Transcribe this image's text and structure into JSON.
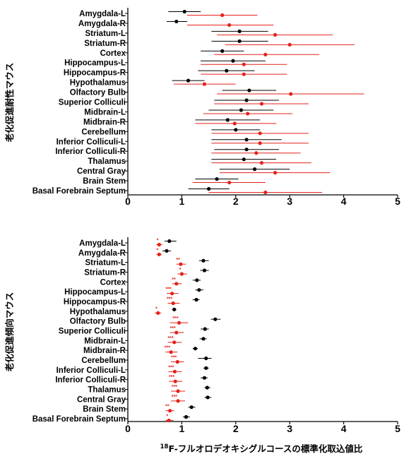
{
  "figure": {
    "x_axis_label_sup": "18",
    "x_axis_label": "F-フルオロデオキシグルコースの標準化取込値比"
  },
  "colors": {
    "control": "#000000",
    "treatment": "#e4221b"
  },
  "chart_data": [
    {
      "type": "scatter",
      "panel": "top",
      "ylabel": "老化促進耐性マウス",
      "xlim": [
        0,
        5
      ],
      "xticks": [
        0,
        1,
        2,
        3,
        4,
        5
      ],
      "categories": [
        "Amygdala-L",
        "Amygdala-R",
        "Striatum-L",
        "Striatum-R",
        "Cortex",
        "Hippocampus-L",
        "Hippocampus-R",
        "Hypothalamus",
        "Olfactory Bulb",
        "Superior Colliculi",
        "Midbrain-L",
        "Midbrain-R",
        "Cerebellum",
        "Inferior Colliculi-L",
        "Inferior Colliculi-R",
        "Thalamus",
        "Central Gray",
        "Brain Stem",
        "Basal Forebrain Septum"
      ],
      "series": [
        {
          "color": "#000000",
          "values": [
            1.05,
            0.9,
            2.07,
            2.07,
            1.75,
            1.95,
            1.83,
            1.12,
            2.25,
            2.2,
            2.1,
            1.85,
            2.0,
            2.2,
            2.2,
            2.15,
            2.35,
            1.65,
            1.5
          ],
          "low": [
            0.75,
            0.72,
            1.55,
            1.55,
            1.35,
            1.35,
            1.3,
            0.82,
            1.75,
            1.6,
            1.5,
            1.25,
            1.55,
            1.55,
            1.6,
            1.55,
            1.7,
            1.25,
            1.12
          ],
          "high": [
            1.35,
            1.1,
            2.6,
            2.6,
            2.15,
            2.55,
            2.35,
            1.42,
            2.75,
            2.8,
            2.7,
            2.45,
            2.45,
            2.85,
            2.8,
            2.75,
            3.0,
            2.05,
            1.88
          ]
        },
        {
          "color": "#e4221b",
          "values": [
            1.75,
            1.88,
            2.73,
            3.0,
            2.55,
            2.15,
            2.15,
            1.42,
            3.02,
            2.48,
            2.22,
            1.98,
            2.45,
            2.45,
            2.38,
            2.48,
            2.73,
            1.88,
            2.55
          ],
          "low": [
            1.1,
            1.1,
            1.65,
            1.8,
            1.6,
            1.35,
            1.35,
            0.85,
            1.65,
            1.6,
            1.4,
            1.25,
            1.55,
            1.55,
            1.55,
            1.55,
            1.7,
            1.2,
            1.5
          ],
          "high": [
            2.4,
            2.7,
            3.8,
            4.2,
            3.55,
            2.95,
            2.95,
            2.0,
            4.38,
            3.35,
            3.05,
            2.75,
            3.35,
            3.35,
            3.2,
            3.4,
            3.75,
            2.55,
            3.6
          ]
        }
      ]
    },
    {
      "type": "scatter",
      "panel": "bottom",
      "ylabel": "老化促進傾向マウス",
      "xlim": [
        0,
        5
      ],
      "xticks": [
        0,
        1,
        2,
        3,
        4,
        5
      ],
      "categories": [
        "Amygdala-L",
        "Amygdala-R",
        "Striatum-L",
        "Striatum-R",
        "Cortex",
        "Hippocampus-L",
        "Hippocampus-R",
        "Hypothalamus",
        "Olfactory Bulb",
        "Superior Colliculi",
        "Midbrain-L",
        "Midbrain-R",
        "Cerebellum",
        "Inferior Colliculi-L",
        "Inferior Colliculi-R",
        "Thalamus",
        "Central Gray",
        "Brain Stem",
        "Basal Forebrain Septum"
      ],
      "series": [
        {
          "color": "#000000",
          "values": [
            0.77,
            0.72,
            1.4,
            1.42,
            1.28,
            1.32,
            1.27,
            0.86,
            1.62,
            1.43,
            1.4,
            1.25,
            1.45,
            1.45,
            1.42,
            1.47,
            1.48,
            1.18,
            1.08
          ],
          "low": [
            0.68,
            0.64,
            1.32,
            1.34,
            1.2,
            1.25,
            1.2,
            0.82,
            1.54,
            1.35,
            1.33,
            1.2,
            1.3,
            1.4,
            1.35,
            1.42,
            1.42,
            1.12,
            1.02
          ],
          "high": [
            0.9,
            0.8,
            1.5,
            1.5,
            1.35,
            1.4,
            1.33,
            0.9,
            1.72,
            1.5,
            1.46,
            1.3,
            1.55,
            1.5,
            1.48,
            1.53,
            1.55,
            1.25,
            1.15
          ]
        },
        {
          "color": "#e4221b",
          "values": [
            0.58,
            0.58,
            0.98,
            1.0,
            0.9,
            0.82,
            0.84,
            0.56,
            0.95,
            0.9,
            0.86,
            0.8,
            0.92,
            0.87,
            0.88,
            0.93,
            0.93,
            0.78,
            0.76
          ],
          "low": [
            0.53,
            0.53,
            0.9,
            0.92,
            0.82,
            0.72,
            0.74,
            0.5,
            0.78,
            0.78,
            0.74,
            0.7,
            0.8,
            0.75,
            0.76,
            0.8,
            0.8,
            0.7,
            0.7
          ],
          "high": [
            0.64,
            0.63,
            1.08,
            1.1,
            1.0,
            0.94,
            0.96,
            0.62,
            1.12,
            1.04,
            1.0,
            0.92,
            1.04,
            1.0,
            1.01,
            1.06,
            1.06,
            0.86,
            0.84
          ]
        }
      ],
      "significance": [
        "*",
        "*",
        "**",
        "*",
        "**",
        "***",
        "***",
        "*",
        "***",
        "***",
        "***",
        "***",
        "***",
        "***",
        "***",
        "***",
        "***",
        "**",
        "*"
      ]
    }
  ]
}
